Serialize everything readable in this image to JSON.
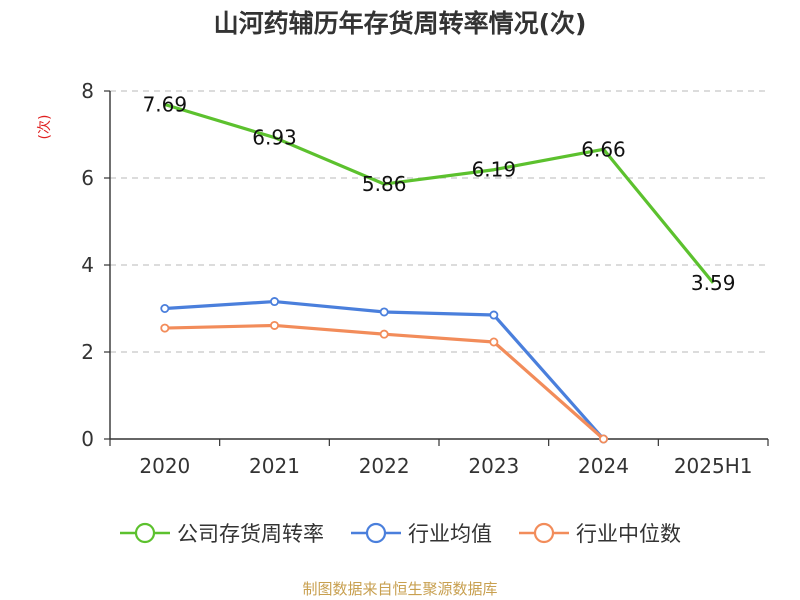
{
  "chart_data": {
    "type": "line",
    "title": "山河药辅历年存货周转率情况(次)",
    "ylabel": "(次)",
    "xlabel": "",
    "categories": [
      "2020",
      "2021",
      "2022",
      "2023",
      "2024",
      "2025H1"
    ],
    "ylim": [
      0,
      8
    ],
    "yticks": [
      "0",
      "2",
      "4",
      "6",
      "8"
    ],
    "grid": "horizontal-dashed",
    "legend_position": "bottom",
    "series": [
      {
        "name": "公司存货周转率",
        "color": "#5cc12e",
        "values": [
          7.69,
          6.93,
          5.86,
          6.19,
          6.66,
          3.59
        ],
        "labels": [
          "7.69",
          "6.93",
          "5.86",
          "6.19",
          "6.66",
          "3.59"
        ]
      },
      {
        "name": "行业均值",
        "color": "#4a7fdc",
        "values": [
          3.0,
          3.16,
          2.92,
          2.85,
          0,
          null
        ]
      },
      {
        "name": "行业中位数",
        "color": "#f28c5a",
        "values": [
          2.55,
          2.61,
          2.41,
          2.23,
          0,
          null
        ]
      }
    ]
  },
  "source": "制图数据来自恒生聚源数据库"
}
